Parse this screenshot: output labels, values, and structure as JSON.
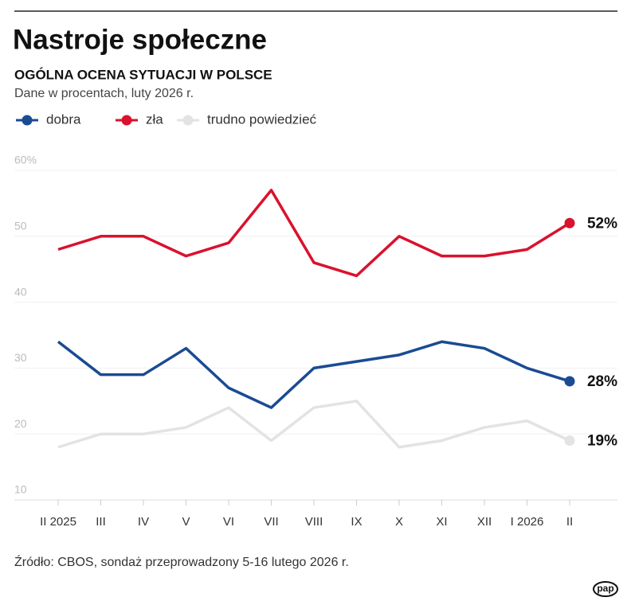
{
  "chart_data": {
    "type": "line",
    "title": "Nastroje społeczne",
    "subtitle": "OGÓLNA OCENA SYTUACJI W POLSCE",
    "note": "Dane w procentach, luty 2026 r.",
    "source": "Źródło: CBOS, sondaż przeprowadzony 5-16 lutego 2026 r.",
    "logo": "pap",
    "categories": [
      "II 2025",
      "III",
      "IV",
      "V",
      "VI",
      "VII",
      "VIII",
      "IX",
      "X",
      "XI",
      "XII",
      "I 2026",
      "II"
    ],
    "series": [
      {
        "name": "dobra",
        "color": "#1a4b93",
        "values": [
          34,
          29,
          29,
          33,
          27,
          24,
          30,
          31,
          32,
          34,
          33,
          30,
          28
        ],
        "value_labels": [
          null,
          null,
          null,
          null,
          null,
          null,
          null,
          null,
          null,
          null,
          null,
          null,
          "28%"
        ]
      },
      {
        "name": "zła",
        "color": "#d9122e",
        "values": [
          48,
          50,
          50,
          47,
          49,
          57,
          46,
          44,
          50,
          47,
          47,
          48,
          52
        ],
        "value_labels": [
          null,
          null,
          null,
          null,
          null,
          null,
          null,
          null,
          null,
          null,
          null,
          null,
          "52%"
        ]
      },
      {
        "name": "trudno powiedzieć",
        "color": "#e3e3e3",
        "values": [
          18,
          20,
          20,
          21,
          24,
          19,
          24,
          25,
          18,
          19,
          21,
          22,
          19
        ],
        "value_labels": [
          null,
          null,
          null,
          null,
          null,
          null,
          null,
          null,
          null,
          null,
          null,
          null,
          "19%"
        ]
      }
    ],
    "ylim": [
      10,
      60
    ],
    "yticks": [
      10,
      20,
      30,
      40,
      50,
      {
        "value": 60,
        "label": "60%"
      }
    ],
    "grid": true,
    "legend": "top"
  }
}
